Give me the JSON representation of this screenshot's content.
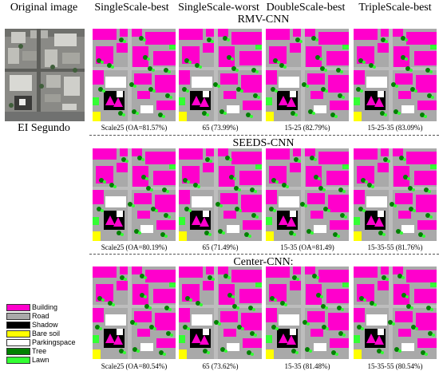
{
  "headers": {
    "original": "Original image",
    "single_best": "SingleScale-best",
    "single_worst": "SingleScale-worst",
    "double_best": "DoubleScale-best",
    "triple_best": "TripleScale-best"
  },
  "original_label": "EI Segundo",
  "groups": [
    {
      "title": "RMV-CNN",
      "captions": [
        "Scale25 (OA=81.57%)",
        "65 (73.99%)",
        "15-25 (82.79%)",
        "15-25-35 (83.09%)"
      ]
    },
    {
      "title": "SEEDS-CNN",
      "captions": [
        "Scale25 (OA=80.19%)",
        "65 (71.49%)",
        "15-35 (OA=81.49)",
        "15-35-55 (81.76%)"
      ]
    },
    {
      "title": "Center-CNN:",
      "captions": [
        "Scale25 (OA=80.54%)",
        "65 (73.62%)",
        "15-35 (81.48%)",
        "15-35-55 (80.54%)"
      ]
    }
  ],
  "legend": [
    {
      "label": "Building",
      "color": "#ff00cc"
    },
    {
      "label": "Road",
      "color": "#a9a9a9"
    },
    {
      "label": "Shadow",
      "color": "#000000"
    },
    {
      "label": "Bare soil",
      "color": "#ffff00"
    },
    {
      "label": "Parkingspace",
      "color": "#ffffff"
    },
    {
      "label": "Tree",
      "color": "#008000"
    },
    {
      "label": "Lawn",
      "color": "#33ff33"
    }
  ]
}
